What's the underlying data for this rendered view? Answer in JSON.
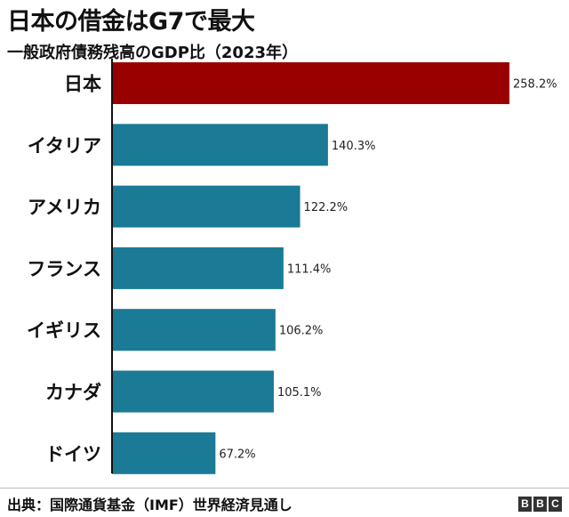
{
  "title": "日本の借金はG7で最大",
  "subtitle": "一般政府債務残高のGDP比（2023年）",
  "source": "出典：国際通貨基金（IMF）世界経済見通し",
  "logo": [
    "B",
    "B",
    "C"
  ],
  "colors": {
    "highlight": "#990000",
    "bar": "#1b7a96",
    "axis": "#111111"
  },
  "chart_data": {
    "type": "bar",
    "orientation": "horizontal",
    "categories": [
      "日本",
      "イタリア",
      "アメリカ",
      "フランス",
      "イギリス",
      "カナダ",
      "ドイツ"
    ],
    "values": [
      258.2,
      140.3,
      122.2,
      111.4,
      106.2,
      105.1,
      67.2
    ],
    "value_labels": [
      "258.2%",
      "140.3%",
      "122.2%",
      "111.4%",
      "106.2%",
      "105.1%",
      "67.2%"
    ],
    "highlight_index": 0,
    "xlim": [
      0,
      258.2
    ],
    "grid": false
  }
}
